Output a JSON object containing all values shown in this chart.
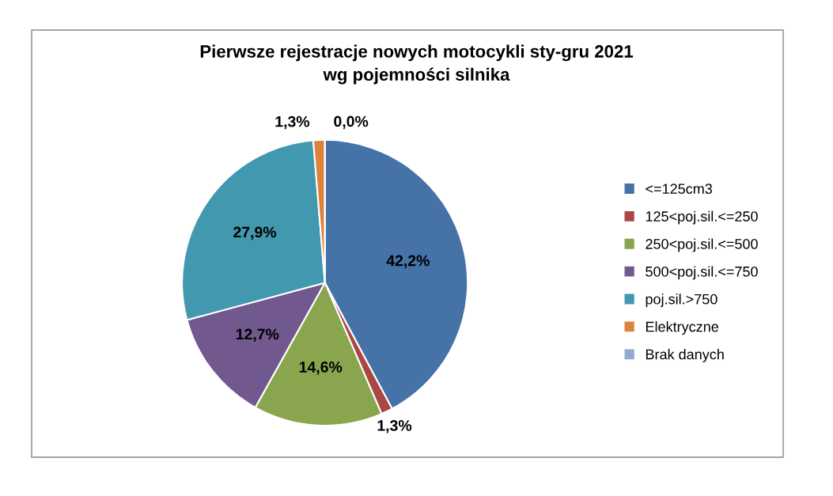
{
  "chart_data": {
    "type": "pie",
    "title": "Pierwsze rejestracje nowych motocykli sty-gru 2021\nwg pojemności silnika",
    "categories": [
      "<=125cm3",
      "125<poj.sil.<=250",
      "250<poj.sil.<=500",
      "500<poj.sil.<=750",
      "poj.sil.>750",
      "Elektryczne",
      "Brak danych"
    ],
    "values": [
      42.2,
      1.3,
      14.6,
      12.7,
      27.9,
      1.3,
      0.0
    ],
    "colors": [
      "#4572a7",
      "#aa4643",
      "#89a54e",
      "#71588f",
      "#4198af",
      "#db843d",
      "#93a9cf"
    ],
    "value_labels": [
      "42,2%",
      "1,3%",
      "14,6%",
      "12,7%",
      "27,9%",
      "1,3%",
      "0,0%"
    ],
    "legend": "right"
  }
}
